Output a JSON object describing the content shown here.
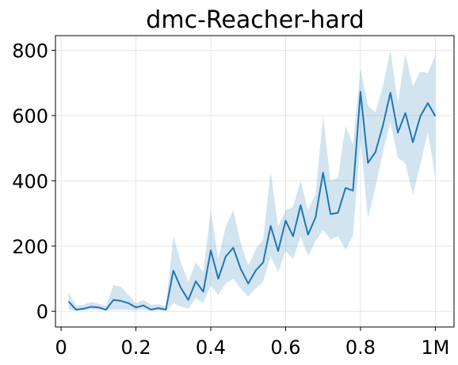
{
  "chart_data": {
    "type": "line",
    "title": "dmc-Reacher-hard",
    "xlabel": "",
    "ylabel": "",
    "xlim": [
      -0.015,
      1.05
    ],
    "ylim": [
      -48,
      845
    ],
    "xticks": [
      0,
      0.2,
      0.4,
      0.6,
      0.8,
      1.0
    ],
    "xtick_labels": [
      "0",
      "0.2",
      "0.4",
      "0.6",
      "0.8",
      "1M"
    ],
    "yticks": [
      0,
      200,
      400,
      600,
      800
    ],
    "ytick_labels": [
      "0",
      "200",
      "400",
      "600",
      "800"
    ],
    "grid": true,
    "legend": "none",
    "colors": {
      "line": "#1f77b4",
      "band": "#1f77b4",
      "grid": "#e6e6e6",
      "axis": "#000000"
    },
    "series": [
      {
        "x": [
          0.02,
          0.04,
          0.06,
          0.08,
          0.1,
          0.12,
          0.14,
          0.16,
          0.18,
          0.2,
          0.22,
          0.24,
          0.26,
          0.28,
          0.3,
          0.32,
          0.34,
          0.36,
          0.38,
          0.4,
          0.42,
          0.44,
          0.46,
          0.48,
          0.5,
          0.52,
          0.54,
          0.56,
          0.58,
          0.6,
          0.62,
          0.64,
          0.66,
          0.68,
          0.7,
          0.72,
          0.74,
          0.76,
          0.78,
          0.8,
          0.82,
          0.84,
          0.86,
          0.88,
          0.9,
          0.92,
          0.94,
          0.96,
          0.98,
          1.0
        ],
        "values": [
          30,
          5,
          8,
          14,
          12,
          5,
          35,
          32,
          25,
          12,
          18,
          5,
          10,
          5,
          125,
          72,
          35,
          92,
          60,
          187,
          100,
          168,
          195,
          130,
          85,
          125,
          150,
          262,
          185,
          278,
          230,
          325,
          235,
          288,
          425,
          298,
          302,
          378,
          370,
          673,
          455,
          488,
          570,
          670,
          548,
          608,
          518,
          598,
          638,
          598
        ],
        "lower": [
          5,
          2,
          3,
          5,
          5,
          2,
          5,
          5,
          5,
          3,
          5,
          2,
          3,
          2,
          25,
          15,
          8,
          40,
          25,
          80,
          50,
          85,
          100,
          70,
          45,
          70,
          90,
          170,
          120,
          185,
          160,
          230,
          170,
          215,
          250,
          220,
          230,
          190,
          230,
          525,
          285,
          380,
          490,
          580,
          470,
          455,
          355,
          450,
          550,
          410
        ],
        "upper": [
          58,
          18,
          20,
          28,
          24,
          16,
          80,
          75,
          50,
          25,
          35,
          20,
          22,
          15,
          230,
          150,
          90,
          150,
          120,
          310,
          160,
          260,
          310,
          210,
          140,
          190,
          220,
          430,
          260,
          310,
          320,
          400,
          310,
          360,
          598,
          400,
          410,
          570,
          510,
          745,
          630,
          610,
          690,
          800,
          640,
          790,
          690,
          735,
          730,
          785
        ]
      }
    ]
  }
}
